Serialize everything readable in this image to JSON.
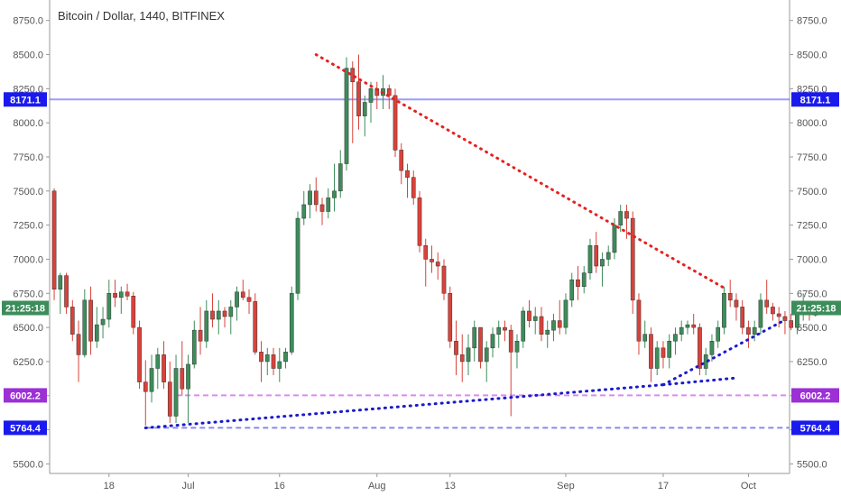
{
  "chart_data": {
    "type": "candlestick",
    "title": "Bitcoin / Dollar, 1440, BITFINEX",
    "colors": {
      "up": "#3c8d5a",
      "down": "#d9423a",
      "up_fill": "#3c8d5a",
      "down_fill": "#d9423a"
    },
    "y_ticks": [
      "5500.0",
      "5750.0",
      "6000.0",
      "6250.0",
      "6500.0",
      "6750.0",
      "7000.0",
      "7250.0",
      "7500.0",
      "7750.0",
      "8000.0",
      "8250.0",
      "8500.0",
      "8750.0"
    ],
    "y_tick_values": [
      5500,
      5750,
      6000,
      6250,
      6500,
      6750,
      7000,
      7250,
      7500,
      7750,
      8000,
      8250,
      8500,
      8750
    ],
    "ylim": [
      5430,
      8900
    ],
    "x_start": "2018-06-09",
    "x_end": "2018-10-07",
    "x_ticks": [
      {
        "label": "18",
        "date": "2018-06-18"
      },
      {
        "label": "Jul",
        "date": "2018-07-01"
      },
      {
        "label": "16",
        "date": "2018-07-16"
      },
      {
        "label": "Aug",
        "date": "2018-08-01"
      },
      {
        "label": "13",
        "date": "2018-08-13"
      },
      {
        "label": "Sep",
        "date": "2018-09-01"
      },
      {
        "label": "17",
        "date": "2018-09-17"
      },
      {
        "label": "Oct",
        "date": "2018-10-01"
      }
    ],
    "candles": [
      [
        7500,
        7520,
        6700,
        6780
      ],
      [
        6780,
        6900,
        6600,
        6880
      ],
      [
        6880,
        6900,
        6600,
        6650
      ],
      [
        6650,
        6700,
        6400,
        6450
      ],
      [
        6450,
        6550,
        6100,
        6300
      ],
      [
        6300,
        6780,
        6280,
        6700
      ],
      [
        6700,
        6800,
        6300,
        6400
      ],
      [
        6400,
        6650,
        6350,
        6520
      ],
      [
        6520,
        6650,
        6420,
        6560
      ],
      [
        6560,
        6850,
        6500,
        6750
      ],
      [
        6750,
        6850,
        6650,
        6720
      ],
      [
        6720,
        6800,
        6600,
        6760
      ],
      [
        6760,
        6820,
        6700,
        6730
      ],
      [
        6730,
        6760,
        6450,
        6500
      ],
      [
        6500,
        6550,
        6050,
        6100
      ],
      [
        6100,
        6260,
        5780,
        6030
      ],
      [
        6030,
        6300,
        5950,
        6200
      ],
      [
        6200,
        6350,
        6050,
        6300
      ],
      [
        6300,
        6400,
        6050,
        6100
      ],
      [
        6100,
        6250,
        5800,
        5850
      ],
      [
        5850,
        6300,
        5800,
        6200
      ],
      [
        6200,
        6400,
        6000,
        6050
      ],
      [
        6050,
        6300,
        5800,
        6230
      ],
      [
        6230,
        6550,
        6200,
        6480
      ],
      [
        6480,
        6650,
        6300,
        6400
      ],
      [
        6400,
        6700,
        6350,
        6620
      ],
      [
        6620,
        6750,
        6500,
        6560
      ],
      [
        6560,
        6700,
        6450,
        6620
      ],
      [
        6620,
        6650,
        6500,
        6580
      ],
      [
        6580,
        6700,
        6450,
        6650
      ],
      [
        6650,
        6800,
        6550,
        6760
      ],
      [
        6760,
        6850,
        6700,
        6720
      ],
      [
        6720,
        6780,
        6600,
        6690
      ],
      [
        6690,
        6750,
        6300,
        6320
      ],
      [
        6320,
        6400,
        6100,
        6250
      ],
      [
        6250,
        6350,
        6150,
        6300
      ],
      [
        6300,
        6350,
        6150,
        6200
      ],
      [
        6200,
        6350,
        6100,
        6250
      ],
      [
        6250,
        6350,
        6200,
        6320
      ],
      [
        6320,
        6800,
        6300,
        6750
      ],
      [
        6750,
        7350,
        6700,
        7300
      ],
      [
        7300,
        7500,
        7250,
        7400
      ],
      [
        7400,
        7550,
        7300,
        7500
      ],
      [
        7500,
        7600,
        7350,
        7400
      ],
      [
        7400,
        7450,
        7250,
        7350
      ],
      [
        7350,
        7520,
        7300,
        7450
      ],
      [
        7450,
        7700,
        7350,
        7500
      ],
      [
        7500,
        7800,
        7450,
        7700
      ],
      [
        7700,
        8480,
        7650,
        8400
      ],
      [
        8400,
        8450,
        7850,
        8300
      ],
      [
        8300,
        8500,
        7950,
        8050
      ],
      [
        8050,
        8200,
        7900,
        8150
      ],
      [
        8150,
        8300,
        8000,
        8250
      ],
      [
        8250,
        8300,
        8100,
        8200
      ],
      [
        8200,
        8350,
        8100,
        8250
      ],
      [
        8250,
        8280,
        8100,
        8200
      ],
      [
        8200,
        8250,
        7750,
        7800
      ],
      [
        7800,
        7850,
        7550,
        7650
      ],
      [
        7650,
        7700,
        7450,
        7600
      ],
      [
        7600,
        7650,
        7400,
        7450
      ],
      [
        7450,
        7500,
        7050,
        7100
      ],
      [
        7100,
        7150,
        6800,
        7000
      ],
      [
        7000,
        7100,
        6900,
        6980
      ],
      [
        6980,
        7050,
        6850,
        6950
      ],
      [
        6950,
        7000,
        6700,
        6750
      ],
      [
        6750,
        6800,
        6350,
        6400
      ],
      [
        6400,
        6550,
        6150,
        6300
      ],
      [
        6300,
        6450,
        6100,
        6250
      ],
      [
        6250,
        6450,
        6150,
        6350
      ],
      [
        6350,
        6550,
        6250,
        6500
      ],
      [
        6500,
        6500,
        6200,
        6250
      ],
      [
        6250,
        6400,
        6100,
        6350
      ],
      [
        6350,
        6500,
        6280,
        6450
      ],
      [
        6450,
        6550,
        6350,
        6500
      ],
      [
        6500,
        6550,
        6400,
        6480
      ],
      [
        6480,
        6520,
        5850,
        6320
      ],
      [
        6320,
        6450,
        6200,
        6400
      ],
      [
        6400,
        6650,
        6350,
        6620
      ],
      [
        6620,
        6700,
        6500,
        6550
      ],
      [
        6550,
        6650,
        6450,
        6580
      ],
      [
        6580,
        6650,
        6400,
        6450
      ],
      [
        6450,
        6550,
        6350,
        6480
      ],
      [
        6480,
        6600,
        6400,
        6550
      ],
      [
        6550,
        6700,
        6450,
        6500
      ],
      [
        6500,
        6750,
        6450,
        6700
      ],
      [
        6700,
        6900,
        6650,
        6850
      ],
      [
        6850,
        6950,
        6700,
        6800
      ],
      [
        6800,
        6950,
        6750,
        6900
      ],
      [
        6900,
        7150,
        6850,
        7100
      ],
      [
        7100,
        7200,
        6900,
        6950
      ],
      [
        6950,
        7050,
        6800,
        7000
      ],
      [
        7000,
        7100,
        6950,
        7050
      ],
      [
        7050,
        7300,
        7000,
        7250
      ],
      [
        7250,
        7400,
        7200,
        7350
      ],
      [
        7350,
        7400,
        7150,
        7300
      ],
      [
        7300,
        7350,
        6600,
        6700
      ],
      [
        6700,
        6750,
        6300,
        6400
      ],
      [
        6400,
        6550,
        6350,
        6450
      ],
      [
        6450,
        6500,
        6100,
        6200
      ],
      [
        6200,
        6400,
        6150,
        6350
      ],
      [
        6350,
        6400,
        6200,
        6280
      ],
      [
        6280,
        6450,
        6200,
        6400
      ],
      [
        6400,
        6500,
        6300,
        6450
      ],
      [
        6450,
        6550,
        6400,
        6500
      ],
      [
        6500,
        6550,
        6450,
        6520
      ],
      [
        6520,
        6600,
        6450,
        6500
      ],
      [
        6500,
        6530,
        6150,
        6200
      ],
      [
        6200,
        6350,
        6150,
        6300
      ],
      [
        6300,
        6450,
        6250,
        6400
      ],
      [
        6400,
        6550,
        6350,
        6500
      ],
      [
        6500,
        6800,
        6450,
        6750
      ],
      [
        6750,
        6850,
        6650,
        6700
      ],
      [
        6700,
        6750,
        6550,
        6650
      ],
      [
        6650,
        6700,
        6450,
        6500
      ],
      [
        6500,
        6550,
        6350,
        6450
      ],
      [
        6450,
        6550,
        6400,
        6500
      ],
      [
        6500,
        6750,
        6450,
        6700
      ],
      [
        6700,
        6850,
        6600,
        6650
      ],
      [
        6650,
        6680,
        6550,
        6600
      ],
      [
        6600,
        6650,
        6500,
        6580
      ],
      [
        6580,
        6620,
        6450,
        6550
      ],
      [
        6550,
        6600,
        6480,
        6500
      ],
      [
        6500,
        6650,
        6450,
        6600
      ],
      [
        6600,
        6750,
        6550,
        6650
      ],
      [
        6650,
        6680,
        6550,
        6600
      ],
      [
        6600,
        6620,
        6580,
        6590
      ]
    ],
    "horizontal_lines": [
      {
        "value": 8171.1,
        "label": "8171.1",
        "color": "#4a4aff",
        "style": "solid",
        "label_bg": "#1a1aee",
        "x_from": "2018-06-09"
      },
      {
        "value": 6002.2,
        "label": "6002.2",
        "color": "#d98cf0",
        "style": "dashed",
        "label_bg": "#9c2fd6",
        "x_from": "2018-06-29"
      },
      {
        "value": 5764.4,
        "label": "5764.4",
        "color": "#8888ee",
        "style": "dashed",
        "label_bg": "#1a1aee",
        "x_from": "2018-06-24"
      }
    ],
    "trendlines": [
      {
        "name": "resistance",
        "color": "#e8201e",
        "from": [
          "2018-07-22",
          8500
        ],
        "to": [
          "2018-09-27",
          6790
        ]
      },
      {
        "name": "support-long",
        "color": "#1a1acc",
        "from": [
          "2018-06-24",
          5764
        ],
        "to": [
          "2018-09-17",
          6080
        ]
      },
      {
        "name": "support-short",
        "color": "#1a1acc",
        "from": [
          "2018-09-17",
          6080
        ],
        "to": [
          "2018-10-07",
          6555
        ]
      },
      {
        "name": "support-stub",
        "color": "#1a1acc",
        "from": [
          "2018-09-17",
          6080
        ],
        "to": [
          "2018-09-29",
          6130
        ]
      }
    ],
    "last_price": {
      "value": 6590,
      "label": "21:25:18",
      "bg": "#3c8d5a"
    },
    "grid": false
  }
}
